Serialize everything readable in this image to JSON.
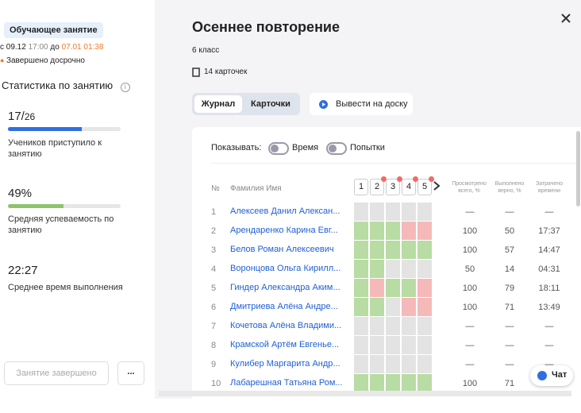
{
  "sidebar": {
    "badge": "Обучающее занятие",
    "period": {
      "from_word": "с",
      "from_date": "09.12",
      "from_time": "17:00",
      "to_word": "до",
      "to_datetime": "07.01 01:38"
    },
    "status": "Завершено досрочно",
    "stats_title": "Статистика по занятию",
    "stats": [
      {
        "value": "17/",
        "total": "26",
        "label": "Учеников приступило к занятию"
      },
      {
        "value": "49%",
        "label": "Средняя успеваемость по занятию"
      },
      {
        "value": "22:27",
        "label": "Среднее время выполнения"
      }
    ],
    "finish_button": "Занятие завершено",
    "more_button": "..."
  },
  "lesson": {
    "title": "Осеннее повторение",
    "grade": "6 класс",
    "cards_count": "14 карточек",
    "tabs": [
      "Журнал",
      "Карточки"
    ],
    "board_button": "Вывести на доску"
  },
  "journal": {
    "show_label": "Показывать:",
    "toggles": [
      "Время",
      "Попытки"
    ],
    "columns": {
      "num": "№",
      "name": "Фамилия Имя",
      "cards": [
        "1",
        "2",
        "3",
        "4",
        "5"
      ],
      "viewed": "Просмотрено всего, %",
      "correct": "Выполнено верно, %",
      "time": "Затрачено времени"
    },
    "rows": [
      {
        "num": "1",
        "name": "Алексеев Данил Алексан...",
        "cells": [
          "empty",
          "empty",
          "empty",
          "empty",
          "empty"
        ],
        "viewed": "—",
        "correct": "—",
        "time": "—"
      },
      {
        "num": "2",
        "name": "Арендаренко Карина Евг...",
        "cells": [
          "correct",
          "correct",
          "correct",
          "wrong",
          "wrong"
        ],
        "viewed": "100",
        "correct": "50",
        "time": "17:37"
      },
      {
        "num": "3",
        "name": "Белов Роман Алексеевич",
        "cells": [
          "correct",
          "correct",
          "correct",
          "correct",
          "correct"
        ],
        "viewed": "100",
        "correct": "57",
        "time": "14:47"
      },
      {
        "num": "4",
        "name": "Воронцова Ольга Кирилл...",
        "cells": [
          "correct",
          "correct",
          "empty",
          "empty",
          "empty"
        ],
        "viewed": "50",
        "correct": "14",
        "time": "04:31"
      },
      {
        "num": "5",
        "name": "Гиндер Александра Аким...",
        "cells": [
          "correct",
          "wrong",
          "correct",
          "correct",
          "wrong"
        ],
        "viewed": "100",
        "correct": "79",
        "time": "18:11"
      },
      {
        "num": "6",
        "name": "Дмитриева Алёна Андре...",
        "cells": [
          "correct",
          "correct",
          "empty",
          "wrong",
          "wrong"
        ],
        "viewed": "100",
        "correct": "71",
        "time": "13:49"
      },
      {
        "num": "7",
        "name": "Кочетова Алёна Владими...",
        "cells": [
          "empty",
          "empty",
          "empty",
          "empty",
          "empty"
        ],
        "viewed": "—",
        "correct": "—",
        "time": "—"
      },
      {
        "num": "8",
        "name": "Крамской Артём Евгенье...",
        "cells": [
          "empty",
          "empty",
          "empty",
          "empty",
          "empty"
        ],
        "viewed": "—",
        "correct": "—",
        "time": "—"
      },
      {
        "num": "9",
        "name": "Кулибер Маргарита Андр...",
        "cells": [
          "empty",
          "empty",
          "empty",
          "empty",
          "empty"
        ],
        "viewed": "—",
        "correct": "—",
        "time": "—"
      },
      {
        "num": "10",
        "name": "Лабарешная Татьяна Ром...",
        "cells": [
          "correct",
          "correct",
          "correct",
          "correct",
          "correct"
        ],
        "viewed": "100",
        "correct": "71"
      }
    ]
  },
  "chat": "Чат"
}
